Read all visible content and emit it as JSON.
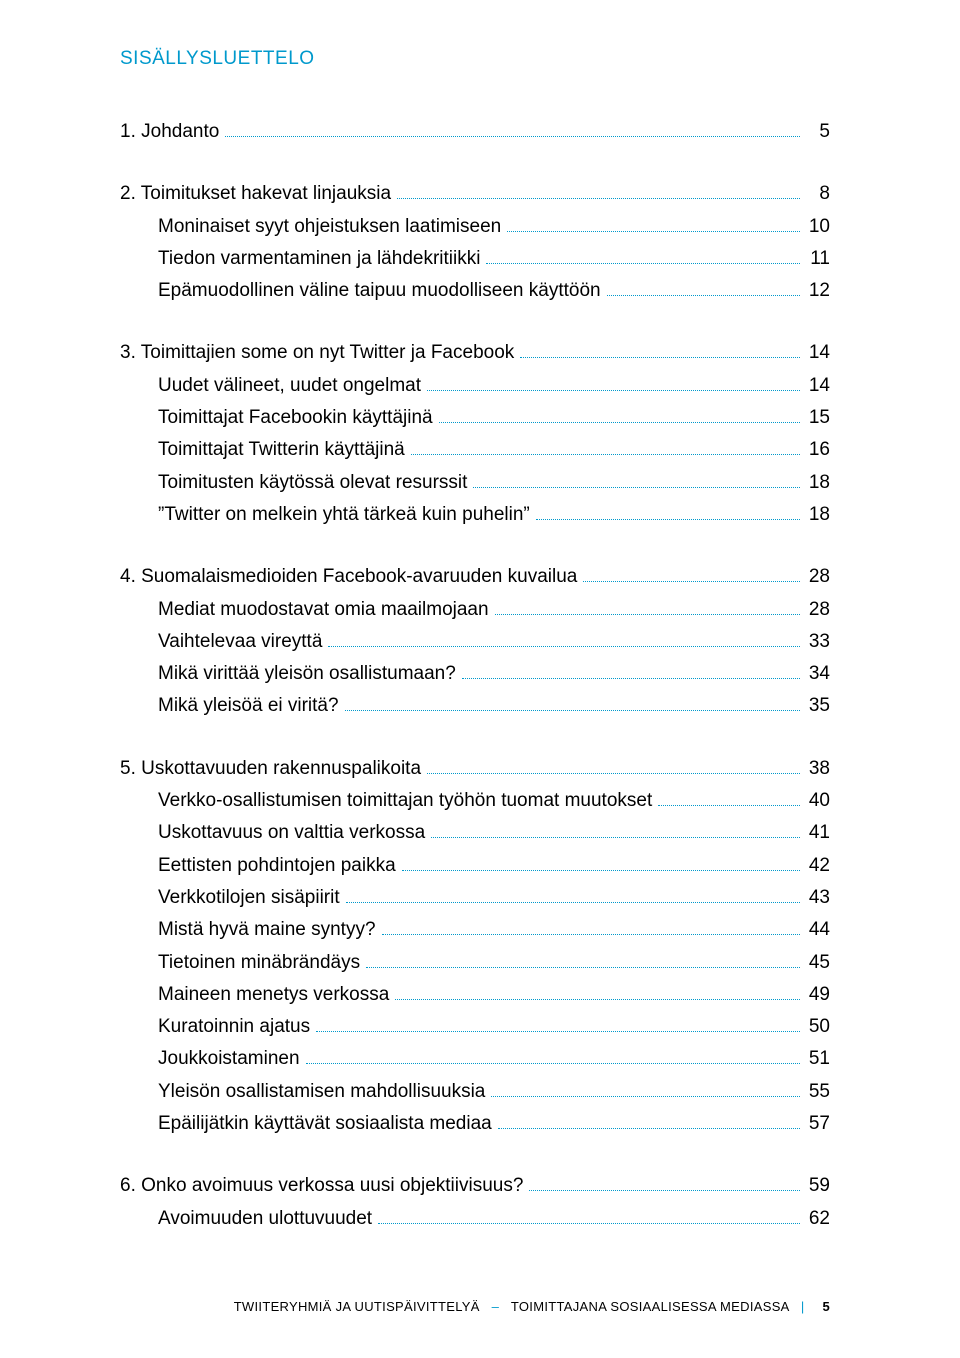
{
  "title": "SISÄLLYSLUETTELO",
  "colors": {
    "accent": "#0099cc",
    "text": "#000000",
    "background": "#ffffff"
  },
  "toc": [
    {
      "head": {
        "label": "1. Johdanto",
        "page": "5"
      },
      "items": []
    },
    {
      "head": {
        "label": "2. Toimitukset hakevat linjauksia",
        "page": "8"
      },
      "items": [
        {
          "label": "Moninaiset syyt ohjeistuksen laatimiseen",
          "page": "10"
        },
        {
          "label": "Tiedon varmentaminen ja lähdekritiikki",
          "page": "11"
        },
        {
          "label": "Epämuodollinen väline taipuu muodolliseen käyttöön",
          "page": "12"
        }
      ]
    },
    {
      "head": {
        "label": "3. Toimittajien some on nyt Twitter ja Facebook",
        "page": "14"
      },
      "items": [
        {
          "label": "Uudet välineet, uudet ongelmat",
          "page": "14"
        },
        {
          "label": "Toimittajat Facebookin käyttäjinä",
          "page": "15"
        },
        {
          "label": "Toimittajat Twitterin käyttäjinä",
          "page": "16"
        },
        {
          "label": "Toimitusten käytössä olevat resurssit",
          "page": "18"
        },
        {
          "label": "”Twitter on melkein yhtä tärkeä kuin puhelin”",
          "page": "18"
        }
      ]
    },
    {
      "head": {
        "label": "4. Suomalaismedioiden Facebook-avaruuden kuvailua",
        "page": "28"
      },
      "items": [
        {
          "label": "Mediat muodostavat omia maailmojaan",
          "page": "28"
        },
        {
          "label": "Vaihtelevaa vireyttä",
          "page": "33"
        },
        {
          "label": "Mikä virittää yleisön osallistumaan?",
          "page": "34"
        },
        {
          "label": "Mikä yleisöä ei viritä?",
          "page": "35"
        }
      ]
    },
    {
      "head": {
        "label": "5. Uskottavuuden rakennuspalikoita",
        "page": "38"
      },
      "items": [
        {
          "label": "Verkko-osallistumisen toimittajan työhön tuomat muutokset",
          "page": "40"
        },
        {
          "label": "Uskottavuus on valttia verkossa",
          "page": "41"
        },
        {
          "label": "Eettisten pohdintojen paikka",
          "page": "42"
        },
        {
          "label": "Verkkotilojen sisäpiirit",
          "page": "43"
        },
        {
          "label": "Mistä hyvä maine syntyy?",
          "page": "44"
        },
        {
          "label": "Tietoinen minäbrändäys",
          "page": "45"
        },
        {
          "label": "Maineen menetys verkossa",
          "page": "49"
        },
        {
          "label": "Kuratoinnin ajatus",
          "page": "50"
        },
        {
          "label": "Joukkoistaminen",
          "page": "51"
        },
        {
          "label": "Yleisön osallistamisen mahdollisuuksia",
          "page": "55"
        },
        {
          "label": "Epäilijätkin käyttävät sosiaalista mediaa",
          "page": "57"
        }
      ]
    },
    {
      "head": {
        "label": "6. Onko avoimuus verkossa uusi objektiivisuus?",
        "page": "59"
      },
      "items": [
        {
          "label": "Avoimuuden ulottuvuudet",
          "page": "62"
        }
      ]
    }
  ],
  "footer": {
    "left": "TWIITERYHMIÄ JA UUTISPÄIVITTELYÄ",
    "right": "TOIMITTAJANA SOSIAALISESSA MEDIASSA",
    "page": "5"
  }
}
